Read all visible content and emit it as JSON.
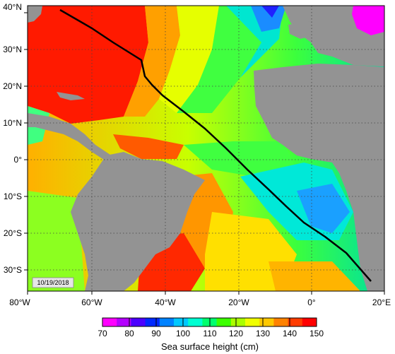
{
  "map": {
    "lon_labels": [
      "80°W",
      "60°W",
      "40°W",
      "20°W",
      "0°",
      "20°E"
    ],
    "lat_labels": [
      "40°N",
      "30°N",
      "20°N",
      "10°N",
      "0°",
      "10°S",
      "20°S",
      "30°S"
    ],
    "date_stamp": "10/19/2018",
    "gridlines": true,
    "land_color": "#939393",
    "track_color": "#000000"
  },
  "colorbar": {
    "title": "Sea surface height (cm)",
    "tick_labels": [
      "70",
      "80",
      "90",
      "100",
      "110",
      "120",
      "130",
      "140",
      "150"
    ],
    "colors": [
      "#ff00ff",
      "#b400ff",
      "#4b00ff",
      "#0028ff",
      "#0082ff",
      "#00c8ff",
      "#00ffd2",
      "#00ff6e",
      "#3cff00",
      "#aaff00",
      "#f0ff00",
      "#ffc800",
      "#ff8200",
      "#ff3c00",
      "#ff0000"
    ]
  }
}
